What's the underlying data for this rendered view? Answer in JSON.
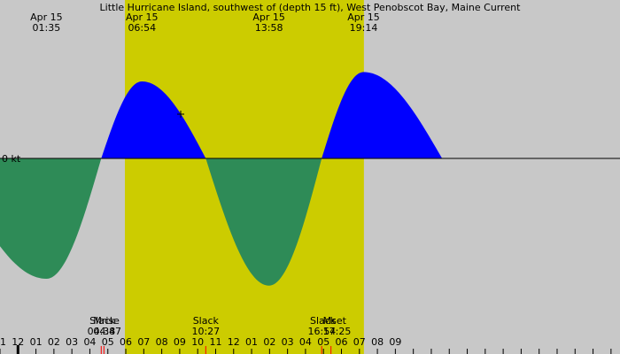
{
  "chart_data": {
    "type": "area",
    "title": "Little Hurricane Island, southwest of (depth 15 ft), West Penobscot Bay, Maine Current",
    "unit_label": "0 kt",
    "x_axis": {
      "start_hour": -1,
      "end_hour": 33.5,
      "tick_labels": [
        {
          "hour": -1,
          "label": "11"
        },
        {
          "hour": 0,
          "label": "12"
        },
        {
          "hour": 1,
          "label": "01"
        },
        {
          "hour": 2,
          "label": "02"
        },
        {
          "hour": 3,
          "label": "03"
        },
        {
          "hour": 4,
          "label": "04"
        },
        {
          "hour": 5,
          "label": "05"
        },
        {
          "hour": 6,
          "label": "06"
        },
        {
          "hour": 7,
          "label": "07"
        },
        {
          "hour": 8,
          "label": "08"
        },
        {
          "hour": 9,
          "label": "09"
        },
        {
          "hour": 10,
          "label": "10"
        },
        {
          "hour": 11,
          "label": "11"
        },
        {
          "hour": 12,
          "label": "12"
        },
        {
          "hour": 13,
          "label": "01"
        },
        {
          "hour": 14,
          "label": "02"
        },
        {
          "hour": 15,
          "label": "03"
        },
        {
          "hour": 16,
          "label": "04"
        },
        {
          "hour": 17,
          "label": "05"
        },
        {
          "hour": 18,
          "label": "06"
        },
        {
          "hour": 19,
          "label": "07"
        },
        {
          "hour": 20,
          "label": "08"
        },
        {
          "hour": 21,
          "label": "09"
        }
      ]
    },
    "daylight": {
      "sunrise_hour": 5.95,
      "sunset_hour": 19.25
    },
    "y_range": [
      -1.45,
      1.0
    ],
    "extremes": [
      {
        "date": "Apr 15",
        "time": "01:35",
        "hour": 1.583,
        "kind": "flood",
        "value": -1.23
      },
      {
        "date": "Apr 15",
        "time": "06:54",
        "hour": 6.9,
        "kind": "ebb",
        "value": 0.82
      },
      {
        "date": "Apr 15",
        "time": "13:58",
        "hour": 13.967,
        "kind": "flood",
        "value": -1.3
      },
      {
        "date": "Apr 15",
        "time": "19:14",
        "hour": 19.233,
        "kind": "ebb",
        "value": 0.92
      }
    ],
    "slacks": [
      {
        "hour": -3.8,
        "value": 0
      },
      {
        "hour": 4.633,
        "value": 0
      },
      {
        "hour": 10.45,
        "value": 0
      },
      {
        "hour": 16.9,
        "value": 0
      },
      {
        "hour": 23.6,
        "value": 0
      }
    ],
    "bottom_events": [
      {
        "label": "Slack",
        "time": "04:38",
        "hour": 4.633,
        "marker": "red"
      },
      {
        "label": "Mrise",
        "time": "04:47",
        "hour": 4.783,
        "marker": "red"
      },
      {
        "label": "Slack",
        "time": "10:27",
        "hour": 10.45,
        "marker": "red"
      },
      {
        "label": "Slack",
        "time": "16:54",
        "hour": 16.9,
        "marker": "red"
      },
      {
        "label": "Mset",
        "time": "17:25",
        "hour": 17.417,
        "marker": "red"
      }
    ],
    "colors": {
      "night": "#c8c8c8",
      "day": "#cccc00",
      "ebb": "#0000ff",
      "flood": "#2e8b57"
    }
  }
}
